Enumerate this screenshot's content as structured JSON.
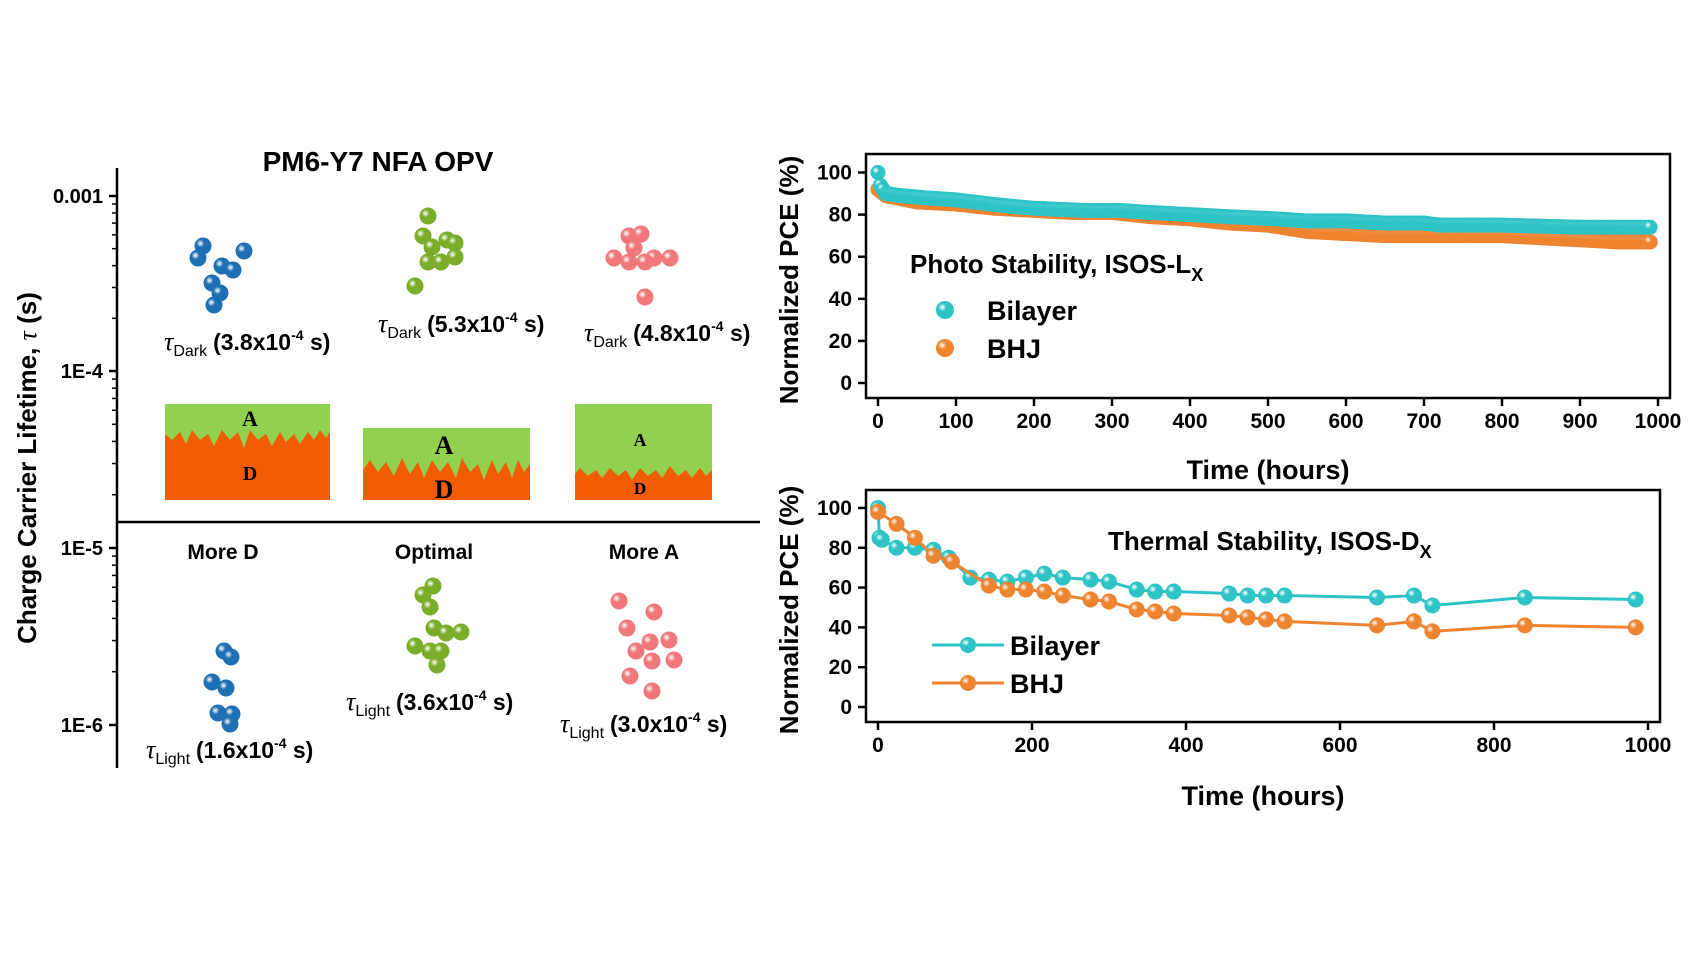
{
  "colors": {
    "teal": "#2EC4C6",
    "orange": "#EE8430",
    "blue": "#1E6FB3",
    "green": "#7AAE2A",
    "pink": "#F0787A",
    "acceptor_green": "#92D050",
    "donor_orange": "#F25C05"
  },
  "left_panel": {
    "title": "PM6-Y7 NFA OPV",
    "ylabel_main": "Charge Carrier Lifetime, ",
    "ylabel_tau": "τ",
    "ylabel_unit": " (s)",
    "ticks": [
      "0.001",
      "1E-4",
      "1E-5",
      "1E-6"
    ],
    "columns": [
      {
        "label": "More D",
        "dark": {
          "sub": "Dark",
          "value": "(3.8x10",
          "exp": "-4",
          "unit": " s)"
        },
        "light": {
          "sub": "Light",
          "value": "(1.6x10",
          "exp": "-4",
          "unit": " s)"
        },
        "color_name": "blue",
        "layer_A": "A",
        "layer_D": "D"
      },
      {
        "label": "Optimal",
        "dark": {
          "sub": "Dark",
          "value": "(5.3x10",
          "exp": "-4",
          "unit": " s)"
        },
        "light": {
          "sub": "Light",
          "value": "(3.6x10",
          "exp": "-4",
          "unit": " s)"
        },
        "color_name": "green",
        "layer_A": "A",
        "layer_D": "D"
      },
      {
        "label": "More A",
        "dark": {
          "sub": "Dark",
          "value": "(4.8x10",
          "exp": "-4",
          "unit": " s)"
        },
        "light": {
          "sub": "Light",
          "value": "(3.0x10",
          "exp": "-4",
          "unit": " s)"
        },
        "color_name": "pink",
        "layer_A": "A",
        "layer_D": "D"
      }
    ],
    "tau_symbol": "τ"
  },
  "chart_data": [
    {
      "type": "scatter",
      "title": "Photo Stability, ISOS-L",
      "title_sub": "X",
      "xlabel": "Time (hours)",
      "ylabel": "Normalized PCE (%)",
      "xlim": [
        0,
        1000
      ],
      "ylim": [
        0,
        105
      ],
      "xticks": [
        0,
        100,
        200,
        300,
        400,
        500,
        600,
        700,
        800,
        900,
        1000
      ],
      "yticks": [
        0,
        20,
        40,
        60,
        80,
        100
      ],
      "legend": "center-left",
      "series": [
        {
          "name": "BHJ",
          "color": "#EE8430",
          "x": [
            0,
            10,
            50,
            100,
            150,
            200,
            250,
            300,
            350,
            400,
            450,
            500,
            550,
            600,
            650,
            700,
            750,
            800,
            850,
            900,
            950,
            990
          ],
          "y": [
            92,
            89,
            86,
            85,
            83,
            82,
            81,
            81,
            79,
            78,
            76,
            75,
            72,
            71,
            70,
            70,
            70,
            70,
            69,
            68,
            67,
            67
          ]
        },
        {
          "name": "Bilayer",
          "color": "#2EC4C6",
          "x": [
            0,
            3,
            10,
            30,
            60,
            100,
            145,
            170,
            200,
            265,
            310,
            350,
            400,
            450,
            510,
            550,
            600,
            650,
            700,
            720,
            800,
            900,
            950,
            990
          ],
          "y": [
            100,
            94,
            90,
            89,
            88,
            87,
            85,
            84,
            83,
            82,
            82,
            81,
            80,
            79,
            78,
            77,
            77,
            76,
            76,
            75,
            75,
            74,
            74,
            74
          ]
        }
      ]
    },
    {
      "type": "line",
      "title": "Thermal Stability, ISOS-D",
      "title_sub": "X",
      "xlabel": "Time (hours)",
      "ylabel": "Normalized PCE (%)",
      "xlim": [
        0,
        1000
      ],
      "ylim": [
        0,
        105
      ],
      "xticks": [
        0,
        200,
        400,
        600,
        800,
        1000
      ],
      "yticks": [
        0,
        20,
        40,
        60,
        80,
        100
      ],
      "legend": "lower-left",
      "series": [
        {
          "name": "Bilayer",
          "color": "#2EC4C6",
          "x": [
            0,
            2,
            5,
            24,
            48,
            72,
            92,
            120,
            144,
            168,
            192,
            216,
            240,
            276,
            300,
            336,
            360,
            384,
            456,
            480,
            504,
            528,
            648,
            696,
            720,
            840,
            984
          ],
          "y": [
            100,
            85,
            84,
            80,
            80,
            79,
            75,
            65,
            64,
            63,
            65,
            67,
            65,
            64,
            63,
            59,
            58,
            58,
            57,
            56,
            56,
            56,
            55,
            56,
            51,
            55,
            54
          ]
        },
        {
          "name": "BHJ",
          "color": "#EE8430",
          "x": [
            0,
            24,
            48,
            72,
            96,
            144,
            168,
            192,
            216,
            240,
            276,
            300,
            336,
            360,
            384,
            456,
            480,
            504,
            528,
            648,
            696,
            720,
            840,
            984
          ],
          "y": [
            98,
            92,
            85,
            76,
            73,
            61,
            59,
            59,
            58,
            56,
            54,
            53,
            49,
            48,
            47,
            46,
            45,
            44,
            43,
            41,
            43,
            38,
            41,
            40
          ]
        }
      ]
    }
  ]
}
